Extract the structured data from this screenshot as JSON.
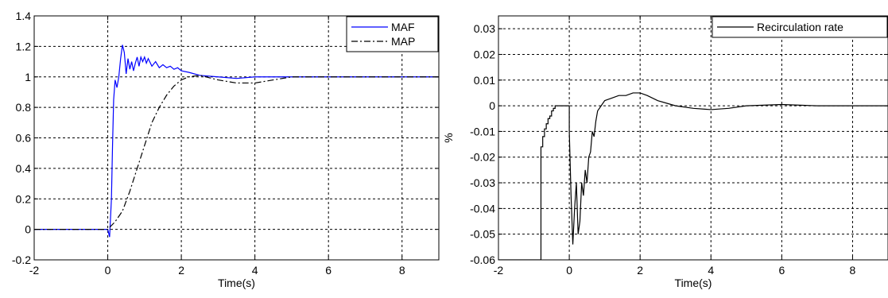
{
  "chart_data": [
    {
      "type": "line",
      "xlabel": "Time(s)",
      "ylabel": "",
      "xlim": [
        -2,
        9
      ],
      "ylim": [
        -0.2,
        1.4
      ],
      "xticks": [
        -2,
        0,
        2,
        4,
        6,
        8
      ],
      "yticks": [
        -0.2,
        0,
        0.2,
        0.4,
        0.6,
        0.8,
        1,
        1.2,
        1.4
      ],
      "xtick_labels": [
        "-2",
        "0",
        "2",
        "4",
        "6",
        "8"
      ],
      "ytick_labels": [
        "-0.2",
        "0",
        "0.2",
        "0.4",
        "0.6",
        "0.8",
        "1",
        "1.2",
        "1.4"
      ],
      "grid": true,
      "legend": "top-right",
      "series": [
        {
          "name": "MAF",
          "color": "#0000ff",
          "dash": "solid",
          "x": [
            -2,
            0,
            0.05,
            0.1,
            0.13,
            0.16,
            0.2,
            0.25,
            0.3,
            0.35,
            0.4,
            0.45,
            0.5,
            0.55,
            0.6,
            0.65,
            0.7,
            0.75,
            0.8,
            0.85,
            0.9,
            0.95,
            1.0,
            1.05,
            1.1,
            1.2,
            1.3,
            1.4,
            1.5,
            1.6,
            1.7,
            1.8,
            1.9,
            2.0,
            2.2,
            2.5,
            3.0,
            3.5,
            4.0,
            4.5,
            5.0,
            5.5,
            6.0,
            7.0,
            8.0,
            9.0
          ],
          "y": [
            0,
            0,
            -0.05,
            0.2,
            0.55,
            0.85,
            0.98,
            0.93,
            1.0,
            1.12,
            1.21,
            1.16,
            1.02,
            1.12,
            1.05,
            1.1,
            1.04,
            1.09,
            1.13,
            1.07,
            1.13,
            1.1,
            1.13,
            1.09,
            1.12,
            1.07,
            1.1,
            1.06,
            1.08,
            1.06,
            1.07,
            1.05,
            1.06,
            1.04,
            1.03,
            1.01,
            1.0,
            0.99,
            1.0,
            1.0,
            1.0,
            1.0,
            1.0,
            1.0,
            1.0,
            1.0
          ]
        },
        {
          "name": "MAP",
          "color": "#000000",
          "dash": "dashdot",
          "x": [
            -2,
            0,
            0.2,
            0.4,
            0.6,
            0.8,
            1.0,
            1.2,
            1.4,
            1.6,
            1.8,
            2.0,
            2.2,
            2.5,
            3.0,
            3.5,
            4.0,
            4.5,
            5.0,
            5.5,
            6.0,
            7.0,
            9.0
          ],
          "y": [
            0,
            0,
            0.05,
            0.12,
            0.25,
            0.4,
            0.55,
            0.7,
            0.8,
            0.88,
            0.94,
            0.98,
            1.0,
            1.01,
            0.98,
            0.96,
            0.96,
            0.98,
            1.0,
            1.0,
            1.0,
            1.0,
            1.0
          ]
        }
      ]
    },
    {
      "type": "line",
      "xlabel": "Time(s)",
      "ylabel": "%",
      "xlim": [
        -2,
        9
      ],
      "ylim": [
        -0.06,
        0.035
      ],
      "xticks": [
        -2,
        0,
        2,
        4,
        6,
        8
      ],
      "yticks": [
        -0.06,
        -0.05,
        -0.04,
        -0.03,
        -0.02,
        -0.01,
        0,
        0.01,
        0.02,
        0.03
      ],
      "xtick_labels": [
        "-2",
        "0",
        "2",
        "4",
        "6",
        "8"
      ],
      "ytick_labels": [
        "-0.06",
        "-0.05",
        "-0.04",
        "-0.03",
        "-0.02",
        "-0.01",
        "0",
        "0.01",
        "0.02",
        "0.03"
      ],
      "grid": true,
      "legend": "top-right",
      "series": [
        {
          "name": "Recirculation rate",
          "color": "#000000",
          "dash": "solid",
          "x": [
            -2,
            -0.8,
            -0.8,
            -0.75,
            -0.75,
            -0.7,
            -0.7,
            -0.65,
            -0.65,
            -0.6,
            -0.6,
            -0.55,
            -0.55,
            -0.5,
            -0.5,
            -0.45,
            -0.45,
            -0.4,
            -0.4,
            -0.3,
            -0.3,
            0.0,
            0.0,
            0.05,
            0.1,
            0.15,
            0.2,
            0.25,
            0.3,
            0.35,
            0.4,
            0.45,
            0.5,
            0.55,
            0.6,
            0.65,
            0.7,
            0.75,
            0.8,
            0.9,
            1.0,
            1.2,
            1.4,
            1.6,
            1.8,
            2.0,
            2.2,
            2.5,
            3.0,
            3.5,
            4.0,
            4.5,
            5.0,
            6.0,
            7.0,
            8.0,
            9.0
          ],
          "y": [
            -0.06,
            -0.06,
            -0.016,
            -0.016,
            -0.012,
            -0.012,
            -0.009,
            -0.009,
            -0.007,
            -0.007,
            -0.005,
            -0.005,
            -0.004,
            -0.004,
            -0.002,
            -0.002,
            -0.001,
            -0.001,
            0.0,
            0.0,
            0.0,
            0.0,
            -0.01,
            -0.035,
            -0.054,
            -0.04,
            -0.03,
            -0.05,
            -0.045,
            -0.03,
            -0.035,
            -0.025,
            -0.03,
            -0.02,
            -0.018,
            -0.01,
            -0.012,
            -0.006,
            -0.002,
            0.0,
            0.002,
            0.003,
            0.004,
            0.004,
            0.005,
            0.005,
            0.004,
            0.002,
            0.0,
            -0.001,
            -0.0015,
            -0.001,
            0.0,
            0.0005,
            0.0,
            0.0,
            0.0
          ]
        }
      ]
    }
  ]
}
